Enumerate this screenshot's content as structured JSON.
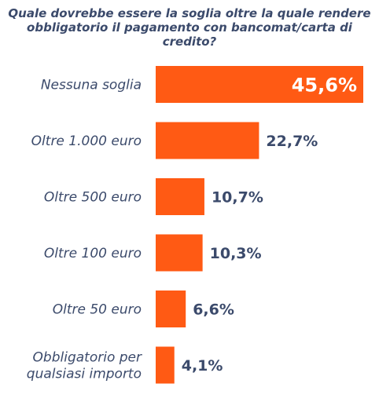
{
  "title_lines": [
    "Quale dovrebbe essere la soglia oltre la quale rendere",
    "obbligatorio il pagamento con bancomat/carta di",
    "credito?"
  ],
  "chart_data": {
    "type": "bar",
    "orientation": "horizontal",
    "title": "Quale dovrebbe essere la soglia oltre la quale rendere obbligatorio il pagamento con bancomat/carta di credito?",
    "categories": [
      [
        "Nessuna soglia"
      ],
      [
        "Oltre 1.000 euro"
      ],
      [
        "Oltre 500 euro"
      ],
      [
        "Oltre 100 euro"
      ],
      [
        "Oltre 50 euro"
      ],
      [
        "Obbligatorio per",
        "qualsiasi importo"
      ]
    ],
    "values": [
      45.6,
      22.7,
      10.7,
      10.3,
      6.6,
      4.1
    ],
    "value_labels": [
      "45,6%",
      "22,7%",
      "10,7%",
      "10,3%",
      "6,6%",
      "4,1%"
    ],
    "xlim": [
      0,
      45.6
    ],
    "bar_color": "#ff5a14",
    "text_color": "#3b4a6b",
    "grid": false,
    "legend": "none"
  }
}
